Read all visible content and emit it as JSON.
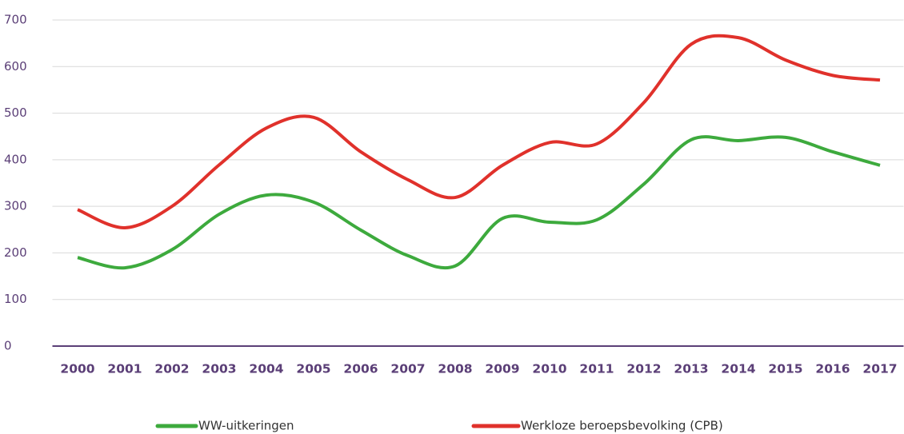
{
  "chart_data": {
    "type": "line",
    "categories": [
      "2000",
      "2001",
      "2002",
      "2003",
      "2004",
      "2005",
      "2006",
      "2007",
      "2008",
      "2009",
      "2010",
      "2011",
      "2012",
      "2013",
      "2014",
      "2015",
      "2016",
      "2017"
    ],
    "series": [
      {
        "name": "WW-uitkeringen",
        "color": "#3daa3d",
        "values": [
          190,
          168,
          207,
          283,
          324,
          309,
          249,
          194,
          172,
          274,
          266,
          271,
          348,
          443,
          441,
          448,
          417,
          388
        ]
      },
      {
        "name": "Werkloze beroepsbevolking (CPB)",
        "color": "#e0312b",
        "values": [
          293,
          254,
          300,
          389,
          468,
          491,
          417,
          357,
          319,
          388,
          437,
          434,
          523,
          648,
          662,
          614,
          581,
          571
        ]
      }
    ],
    "ylim": [
      0,
      700
    ],
    "yticks": [
      0,
      100,
      200,
      300,
      400,
      500,
      600,
      700
    ],
    "grid": true,
    "legend": "bottom"
  }
}
